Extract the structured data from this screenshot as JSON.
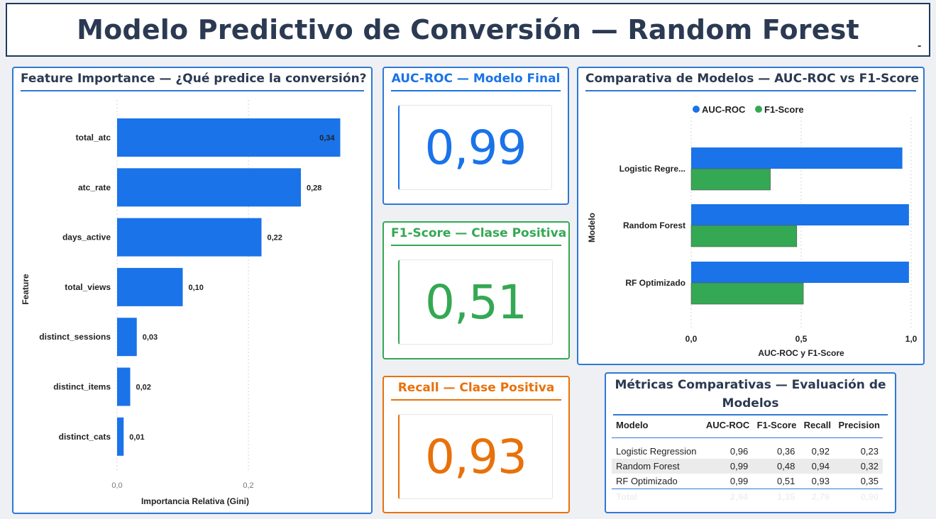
{
  "header": {
    "title": "Modelo Predictivo de Conversión — Random Forest",
    "minimize_label": "-"
  },
  "feature_panel": {
    "title": "Feature Importance — ¿Qué predice la conversión?",
    "chart_data": {
      "type": "bar",
      "orientation": "horizontal",
      "categories": [
        "total_atc",
        "atc_rate",
        "days_active",
        "total_views",
        "distinct_sessions",
        "distinct_items",
        "distinct_cats"
      ],
      "values": [
        0.34,
        0.28,
        0.22,
        0.1,
        0.03,
        0.02,
        0.01
      ],
      "value_labels": [
        "0,34",
        "0,28",
        "0,22",
        "0,10",
        "0,03",
        "0,02",
        "0,01"
      ],
      "xlabel": "Importancia Relativa (Gini)",
      "ylabel": "Feature",
      "xlim": [
        0,
        0.34
      ],
      "x_ticks": [
        0,
        0.2
      ],
      "x_tick_labels": [
        "0,0",
        "0,2"
      ],
      "grid": "vertical dotted",
      "color": "#1a73e8"
    }
  },
  "kpis": [
    {
      "title": "AUC-ROC — Modelo Final",
      "value": "0,99",
      "color": "#1a73e8"
    },
    {
      "title": "F1-Score — Clase Positiva",
      "value": "0,51",
      "color": "#34a853"
    },
    {
      "title": "Recall — Clase Positiva",
      "value": "0,93",
      "color": "#e8710a"
    }
  ],
  "compare_panel": {
    "title": "Comparativa de Modelos — AUC-ROC vs F1-Score",
    "chart_data": {
      "type": "bar",
      "orientation": "horizontal",
      "categories": [
        "Logistic Regre...",
        "Random Forest",
        "RF Optimizado"
      ],
      "series": [
        {
          "name": "AUC-ROC",
          "values": [
            0.96,
            0.99,
            0.99
          ],
          "color": "#1a73e8"
        },
        {
          "name": "F1-Score",
          "values": [
            0.36,
            0.48,
            0.51
          ],
          "color": "#34a853"
        }
      ],
      "xlabel": "AUC-ROC y F1-Score",
      "ylabel": "Modelo",
      "xlim": [
        0,
        1.0
      ],
      "x_ticks": [
        0,
        0.5,
        1.0
      ],
      "x_tick_labels": [
        "0,0",
        "0,5",
        "1,0"
      ],
      "legend": "top-center",
      "grid": "vertical dotted"
    }
  },
  "metrics_table": {
    "title_line1": "Métricas Comparativas — Evaluación de",
    "title_line2": "Modelos",
    "columns": [
      "Modelo",
      "AUC-ROC",
      "F1-Score",
      "Recall",
      "Precision"
    ],
    "rows": [
      [
        "Logistic Regression",
        "0,96",
        "0,36",
        "0,92",
        "0,23"
      ],
      [
        "Random Forest",
        "0,99",
        "0,48",
        "0,94",
        "0,32"
      ],
      [
        "RF Optimizado",
        "0,99",
        "0,51",
        "0,93",
        "0,35"
      ]
    ],
    "total": [
      "Total",
      "2,94",
      "1,35",
      "2,79",
      "0,90"
    ]
  }
}
